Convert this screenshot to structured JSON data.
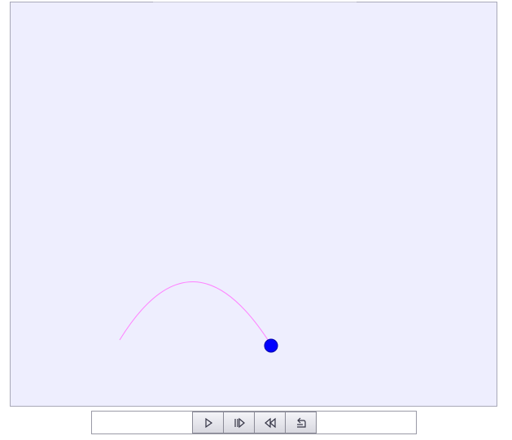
{
  "simulation": {
    "background_color": "#eeeefe",
    "trajectory_color": "#ff80ff",
    "ball_color": "#0000ff"
  },
  "controls": {
    "buttons": [
      {
        "name": "play-button",
        "icon": "play-icon"
      },
      {
        "name": "step-forward-button",
        "icon": "step-forward-icon"
      },
      {
        "name": "rewind-button",
        "icon": "rewind-icon"
      },
      {
        "name": "reset-button",
        "icon": "reset-icon"
      }
    ]
  }
}
